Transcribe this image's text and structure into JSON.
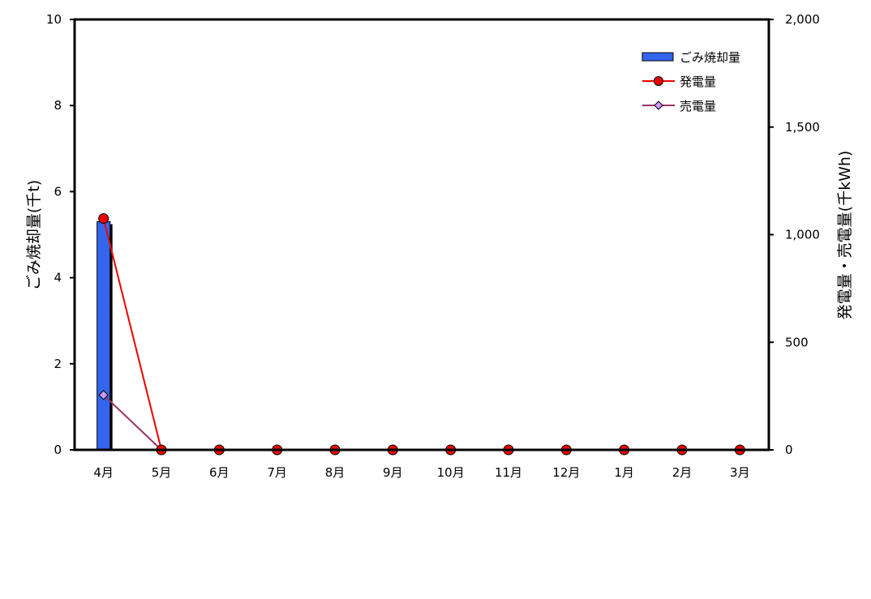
{
  "chart_data": {
    "type": "bar",
    "categories": [
      "4月",
      "5月",
      "6月",
      "7月",
      "8月",
      "9月",
      "10月",
      "11月",
      "12月",
      "1月",
      "2月",
      "3月"
    ],
    "ylabel": "ごみ焼却量(千t)",
    "y2label": "発電量・売電量(千kWh)",
    "ylim": [
      0,
      10
    ],
    "y2lim": [
      0,
      2000
    ],
    "yticks": [
      "0",
      "2",
      "4",
      "6",
      "8",
      "10"
    ],
    "y2ticks": [
      "0",
      "500",
      "1,000",
      "1,500",
      "2,000"
    ],
    "grid": false,
    "legend_position": "top-right",
    "series": [
      {
        "name": "ごみ焼却量",
        "kind": "bar",
        "axis": "left",
        "color": "#3366ee",
        "values": [
          5.3,
          0,
          0,
          0,
          0,
          0,
          0,
          0,
          0,
          0,
          0,
          0
        ]
      },
      {
        "name": "発電量",
        "kind": "line",
        "axis": "right",
        "color": "#ee0000",
        "marker": "circle",
        "values": [
          1075,
          0,
          0,
          0,
          0,
          0,
          0,
          0,
          0,
          0,
          0,
          0
        ]
      },
      {
        "name": "売電量",
        "kind": "line",
        "axis": "right",
        "color": "#993366",
        "marker": "diamond",
        "marker_color": "#cc99ff",
        "values": [
          255,
          0,
          0,
          0,
          0,
          0,
          0,
          0,
          0,
          0,
          0,
          0
        ]
      }
    ]
  }
}
